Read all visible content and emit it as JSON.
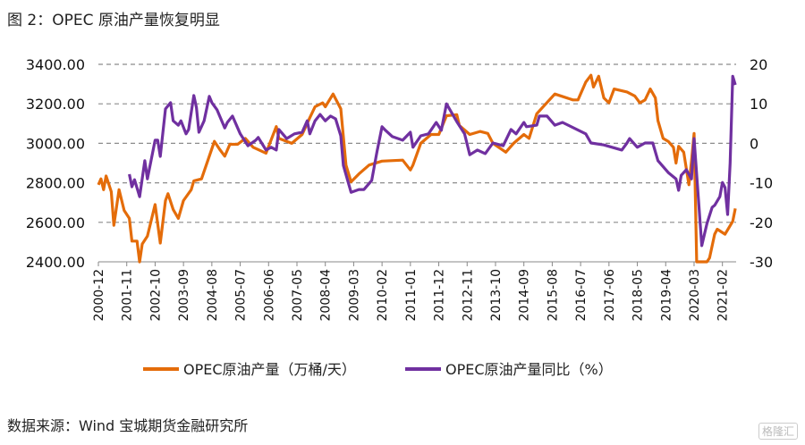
{
  "title": "图 2：OPEC 原油产量恢复明显",
  "source": "数据来源：Wind  宝城期货金融研究所",
  "watermark": "格隆汇",
  "chart_data": {
    "type": "line",
    "title": "",
    "xlabel": "",
    "ylabel": "",
    "grid": true,
    "legend_position": "bottom",
    "x_tick_labels": [
      "2000-12",
      "2001-11",
      "2002-10",
      "2003-09",
      "2004-08",
      "2005-07",
      "2006-06",
      "2007-05",
      "2008-04",
      "2009-03",
      "2010-02",
      "2011-01",
      "2011-12",
      "2012-11",
      "2013-10",
      "2014-09",
      "2015-08",
      "2016-07",
      "2017-06",
      "2018-05",
      "2019-04",
      "2020-03",
      "2021-02"
    ],
    "y_left": {
      "range": [
        2400,
        3400
      ],
      "ticks": [
        "2400.00",
        "2600.00",
        "2800.00",
        "3000.00",
        "3200.00",
        "3400.00"
      ]
    },
    "y_right": {
      "range": [
        -30,
        20
      ],
      "ticks": [
        "-30",
        "-20",
        "-10",
        "0",
        "10",
        "20"
      ]
    },
    "series": [
      {
        "name": "OPEC原油产量（万桶/天）",
        "axis": "left",
        "color": "#E46C0A",
        "points": [
          [
            "2000-12",
            2790
          ],
          [
            "2001-01",
            2820
          ],
          [
            "2001-02",
            2765
          ],
          [
            "2001-03",
            2835
          ],
          [
            "2001-05",
            2755
          ],
          [
            "2001-06",
            2585
          ],
          [
            "2001-08",
            2765
          ],
          [
            "2001-10",
            2660
          ],
          [
            "2001-12",
            2620
          ],
          [
            "2002-01",
            2505
          ],
          [
            "2002-03",
            2505
          ],
          [
            "2002-04",
            2400
          ],
          [
            "2002-05",
            2490
          ],
          [
            "2002-07",
            2530
          ],
          [
            "2002-10",
            2690
          ],
          [
            "2002-12",
            2495
          ],
          [
            "2003-02",
            2710
          ],
          [
            "2003-03",
            2745
          ],
          [
            "2003-05",
            2665
          ],
          [
            "2003-07",
            2620
          ],
          [
            "2003-09",
            2710
          ],
          [
            "2003-12",
            2765
          ],
          [
            "2004-01",
            2810
          ],
          [
            "2004-04",
            2820
          ],
          [
            "2004-07",
            2935
          ],
          [
            "2004-09",
            3010
          ],
          [
            "2004-11",
            2970
          ],
          [
            "2005-01",
            2935
          ],
          [
            "2005-03",
            2995
          ],
          [
            "2005-06",
            2995
          ],
          [
            "2005-09",
            3025
          ],
          [
            "2005-12",
            2980
          ],
          [
            "2006-05",
            2950
          ],
          [
            "2006-09",
            3085
          ],
          [
            "2006-10",
            3025
          ],
          [
            "2007-03",
            3000
          ],
          [
            "2007-07",
            3045
          ],
          [
            "2007-10",
            3130
          ],
          [
            "2007-12",
            3185
          ],
          [
            "2008-03",
            3205
          ],
          [
            "2008-04",
            3185
          ],
          [
            "2008-07",
            3250
          ],
          [
            "2008-10",
            3175
          ],
          [
            "2008-12",
            2890
          ],
          [
            "2009-02",
            2805
          ],
          [
            "2009-05",
            2845
          ],
          [
            "2009-09",
            2890
          ],
          [
            "2010-02",
            2910
          ],
          [
            "2010-10",
            2915
          ],
          [
            "2011-01",
            2865
          ],
          [
            "2011-02",
            2890
          ],
          [
            "2011-05",
            3000
          ],
          [
            "2011-09",
            3045
          ],
          [
            "2011-12",
            3045
          ],
          [
            "2012-03",
            3140
          ],
          [
            "2012-07",
            3145
          ],
          [
            "2012-08",
            3090
          ],
          [
            "2012-12",
            3045
          ],
          [
            "2013-04",
            3060
          ],
          [
            "2013-07",
            3050
          ],
          [
            "2013-09",
            3000
          ],
          [
            "2014-02",
            2955
          ],
          [
            "2014-05",
            3000
          ],
          [
            "2014-09",
            3045
          ],
          [
            "2014-11",
            3025
          ],
          [
            "2015-02",
            3150
          ],
          [
            "2015-09",
            3250
          ],
          [
            "2016-04",
            3220
          ],
          [
            "2016-06",
            3220
          ],
          [
            "2016-09",
            3310
          ],
          [
            "2016-11",
            3345
          ],
          [
            "2016-12",
            3285
          ],
          [
            "2017-02",
            3340
          ],
          [
            "2017-04",
            3230
          ],
          [
            "2017-06",
            3205
          ],
          [
            "2017-08",
            3275
          ],
          [
            "2018-01",
            3260
          ],
          [
            "2018-04",
            3240
          ],
          [
            "2018-06",
            3205
          ],
          [
            "2018-08",
            3220
          ],
          [
            "2018-10",
            3275
          ],
          [
            "2018-12",
            3230
          ],
          [
            "2019-01",
            3115
          ],
          [
            "2019-03",
            3025
          ],
          [
            "2019-05",
            3010
          ],
          [
            "2019-07",
            2980
          ],
          [
            "2019-08",
            2900
          ],
          [
            "2019-09",
            2985
          ],
          [
            "2019-11",
            2955
          ],
          [
            "2020-01",
            2790
          ],
          [
            "2020-02",
            2910
          ],
          [
            "2020-03",
            3050
          ],
          [
            "2020-04",
            2380
          ],
          [
            "2020-06",
            2380
          ],
          [
            "2020-08",
            2400
          ],
          [
            "2020-09",
            2420
          ],
          [
            "2020-11",
            2540
          ],
          [
            "2020-12",
            2565
          ],
          [
            "2021-03",
            2540
          ],
          [
            "2021-06",
            2605
          ],
          [
            "2021-07",
            2670
          ]
        ]
      },
      {
        "name": "OPEC原油产量同比（%）",
        "axis": "right",
        "color": "#7030A0",
        "points": [
          [
            "2001-12",
            -7.8
          ],
          [
            "2002-01",
            -11
          ],
          [
            "2002-02",
            -9.2
          ],
          [
            "2002-04",
            -13.5
          ],
          [
            "2002-06",
            -4.4
          ],
          [
            "2002-07",
            -9
          ],
          [
            "2002-10",
            0.8
          ],
          [
            "2002-11",
            0.8
          ],
          [
            "2002-12",
            -3.3
          ],
          [
            "2003-02",
            8.7
          ],
          [
            "2003-04",
            10.3
          ],
          [
            "2003-05",
            5.7
          ],
          [
            "2003-07",
            4.6
          ],
          [
            "2003-08",
            5.7
          ],
          [
            "2003-10",
            2.4
          ],
          [
            "2003-11",
            3.5
          ],
          [
            "2004-01",
            12.1
          ],
          [
            "2004-02",
            9.1
          ],
          [
            "2004-03",
            2.8
          ],
          [
            "2004-05",
            5.7
          ],
          [
            "2004-07",
            11.9
          ],
          [
            "2004-08",
            10.3
          ],
          [
            "2004-10",
            8.5
          ],
          [
            "2005-01",
            3.9
          ],
          [
            "2005-02",
            5.3
          ],
          [
            "2005-04",
            6.9
          ],
          [
            "2005-07",
            2.4
          ],
          [
            "2005-10",
            -0.6
          ],
          [
            "2006-01",
            0.8
          ],
          [
            "2006-02",
            1.5
          ],
          [
            "2006-05",
            -1.7
          ],
          [
            "2006-07",
            -1
          ],
          [
            "2006-09",
            -1.7
          ],
          [
            "2006-10",
            3.5
          ],
          [
            "2007-01",
            1.2
          ],
          [
            "2007-04",
            2.4
          ],
          [
            "2007-07",
            2.8
          ],
          [
            "2007-09",
            5.7
          ],
          [
            "2007-10",
            2.4
          ],
          [
            "2007-12",
            5.7
          ],
          [
            "2008-02",
            7.3
          ],
          [
            "2008-04",
            5.7
          ],
          [
            "2008-06",
            6.9
          ],
          [
            "2008-08",
            6.2
          ],
          [
            "2008-10",
            1.9
          ],
          [
            "2008-11",
            -5.6
          ],
          [
            "2009-02",
            -12.4
          ],
          [
            "2009-05",
            -11.7
          ],
          [
            "2009-07",
            -11.7
          ],
          [
            "2009-10",
            -9.4
          ],
          [
            "2009-12",
            -2.2
          ],
          [
            "2010-02",
            4.2
          ],
          [
            "2010-03",
            3.5
          ],
          [
            "2010-06",
            1.7
          ],
          [
            "2010-10",
            0.8
          ],
          [
            "2011-01",
            2.8
          ],
          [
            "2011-02",
            -1
          ],
          [
            "2011-05",
            1.9
          ],
          [
            "2011-08",
            2.4
          ],
          [
            "2011-11",
            5.3
          ],
          [
            "2012-01",
            3.3
          ],
          [
            "2012-03",
            10
          ],
          [
            "2012-07",
            5.5
          ],
          [
            "2012-10",
            2.4
          ],
          [
            "2012-12",
            -2.9
          ],
          [
            "2013-03",
            -1.7
          ],
          [
            "2013-06",
            -2.6
          ],
          [
            "2013-09",
            0.1
          ],
          [
            "2014-01",
            -0.6
          ],
          [
            "2014-04",
            3.5
          ],
          [
            "2014-06",
            2.4
          ],
          [
            "2014-09",
            5.3
          ],
          [
            "2014-10",
            4.2
          ],
          [
            "2015-02",
            4.6
          ],
          [
            "2015-03",
            6.9
          ],
          [
            "2015-06",
            6.9
          ],
          [
            "2015-09",
            4.6
          ],
          [
            "2015-12",
            5.3
          ],
          [
            "2016-09",
            2.4
          ],
          [
            "2016-11",
            0.1
          ],
          [
            "2017-04",
            -0.4
          ],
          [
            "2017-11",
            -1.7
          ],
          [
            "2018-01",
            0.1
          ],
          [
            "2018-02",
            1.2
          ],
          [
            "2018-05",
            -1
          ],
          [
            "2018-08",
            0.1
          ],
          [
            "2018-11",
            0.1
          ],
          [
            "2019-01",
            -4.4
          ],
          [
            "2019-05",
            -7.4
          ],
          [
            "2019-08",
            -9
          ],
          [
            "2019-09",
            -11.9
          ],
          [
            "2019-10",
            -8.1
          ],
          [
            "2019-12",
            -6.7
          ],
          [
            "2020-02",
            -9
          ],
          [
            "2020-03",
            1.2
          ],
          [
            "2020-06",
            -25.9
          ],
          [
            "2020-08",
            -20.3
          ],
          [
            "2020-10",
            -16.2
          ],
          [
            "2020-11",
            -15.7
          ],
          [
            "2021-01",
            -13.5
          ],
          [
            "2021-02",
            -9.9
          ],
          [
            "2021-03",
            -11.2
          ],
          [
            "2021-04",
            -18
          ],
          [
            "2021-05",
            -5
          ],
          [
            "2021-06",
            17
          ],
          [
            "2021-07",
            14.8
          ]
        ]
      }
    ]
  }
}
